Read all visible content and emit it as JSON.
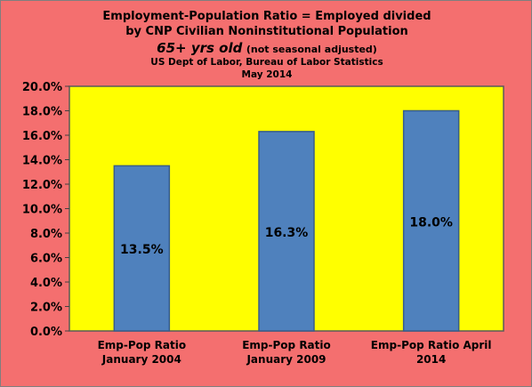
{
  "title": {
    "line1": "Employment-Population Ratio = Employed divided",
    "line2": "by CNP Civilian Noninstitutional Population",
    "line3_main": "65+ yrs old",
    "line3_note": "(not seasonal adjusted)",
    "line4": "US Dept of Labor, Bureau of Labor Statistics",
    "line5": "May 2014"
  },
  "colors": {
    "background": "#f46f6f",
    "plot_area": "#ffff00",
    "bar": "#4f81bd",
    "bar_border": "#385d8a"
  },
  "chart_data": {
    "type": "bar",
    "title": "Employment-Population Ratio = Employed divided by CNP Civilian Noninstitutional Population 65+ yrs old (not seasonal adjusted)",
    "categories": [
      [
        "Emp-Pop Ratio",
        "January 2004"
      ],
      [
        "Emp-Pop Ratio",
        "January 2009"
      ],
      [
        "Emp-Pop Ratio April",
        "2014"
      ]
    ],
    "values": [
      13.5,
      16.3,
      18.0
    ],
    "data_labels": [
      "13.5%",
      "16.3%",
      "18.0%"
    ],
    "ylim": [
      0,
      20
    ],
    "yticks": [
      0,
      2,
      4,
      6,
      8,
      10,
      12,
      14,
      16,
      18,
      20
    ],
    "ytick_labels": [
      "0.0%",
      "2.0%",
      "4.0%",
      "6.0%",
      "8.0%",
      "10.0%",
      "12.0%",
      "14.0%",
      "16.0%",
      "18.0%",
      "20.0%"
    ],
    "xlabel": "",
    "ylabel": "",
    "grid": false,
    "legend": "none"
  }
}
